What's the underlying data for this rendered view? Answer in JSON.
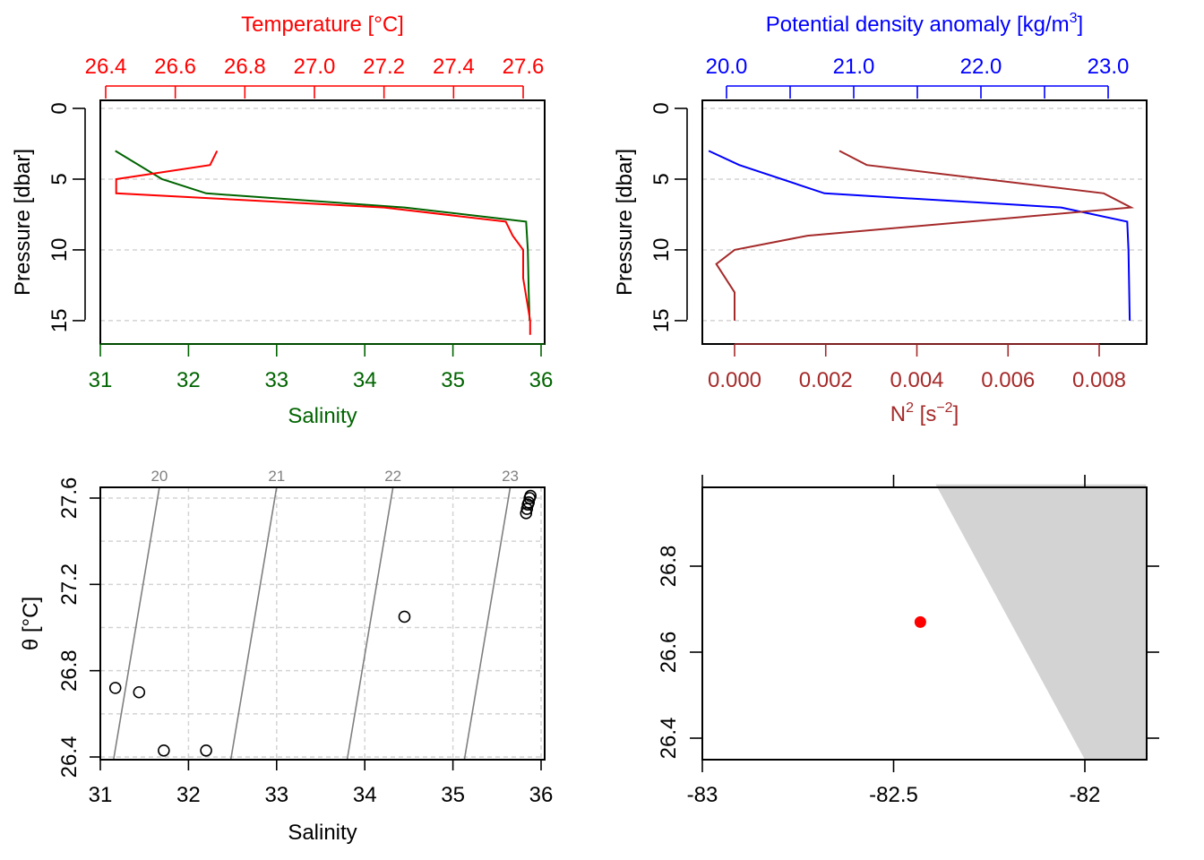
{
  "colors": {
    "temperature": "#ff0000",
    "salinity": "#006400",
    "density": "#0000ff",
    "n2": "#a52a2a",
    "grid": "#d3d3d3",
    "isopycnal": "#7f7f7f",
    "land": "#d3d3d3",
    "station": "#ff0000"
  },
  "chart_data": [
    {
      "panel": "temperature-salinity-profile",
      "type": "line",
      "top_axis_label": "Temperature [°C]",
      "bottom_axis_label": "Salinity",
      "left_axis_label": "Pressure [dbar]",
      "top_ticks": [
        "26.4",
        "26.6",
        "26.8",
        "27.0",
        "27.2",
        "27.4",
        "27.6"
      ],
      "bottom_ticks": [
        "31",
        "32",
        "33",
        "34",
        "35",
        "36"
      ],
      "left_ticks": [
        "0",
        "5",
        "10",
        "15"
      ],
      "xlim_salinity": [
        31,
        36
      ],
      "xlim_temperature": [
        26.4,
        27.6
      ],
      "ylim": [
        17,
        0
      ],
      "grid": true,
      "series": [
        {
          "name": "Temperature",
          "x": [
            26.72,
            26.7,
            26.43,
            26.43,
            27.2,
            27.55,
            27.57,
            27.6,
            27.6,
            27.62,
            27.62
          ],
          "y": [
            3,
            4,
            5,
            6,
            7,
            8,
            9,
            10,
            12,
            15,
            16
          ]
        },
        {
          "name": "Salinity",
          "x": [
            31.17,
            31.7,
            32.2,
            34.45,
            35.83,
            35.85,
            35.86,
            35.87
          ],
          "y": [
            3,
            5,
            6,
            7,
            8,
            10,
            13,
            15
          ]
        }
      ]
    },
    {
      "panel": "density-n2-profile",
      "type": "line",
      "top_axis_label": "Potential density anomaly [kg/m3]",
      "bottom_axis_label": "N2 [s-2]",
      "left_axis_label": "Pressure [dbar]",
      "top_ticks": [
        "20.0",
        "21.0",
        "22.0",
        "23.0"
      ],
      "bottom_ticks": [
        "0.000",
        "0.002",
        "0.004",
        "0.006",
        "0.008"
      ],
      "left_ticks": [
        "0",
        "5",
        "10",
        "15"
      ],
      "xlim_density": [
        19.98,
        23.28
      ],
      "xlim_n2": [
        -0.00057,
        0.00907
      ],
      "ylim": [
        17,
        0
      ],
      "grid": true,
      "series": [
        {
          "name": "Potential density anomaly",
          "x": [
            19.86,
            20.1,
            20.77,
            22.63,
            23.15,
            23.16,
            23.17
          ],
          "y": [
            3,
            4,
            6,
            7,
            8,
            10,
            15
          ]
        },
        {
          "name": "N2",
          "x": [
            0.0023,
            0.0029,
            0.0081,
            0.0087,
            0.0016,
            0.0,
            -0.0004,
            0.0,
            0.0
          ],
          "y": [
            3,
            4,
            6,
            7,
            9,
            10,
            11,
            13,
            15
          ]
        }
      ]
    },
    {
      "panel": "ts-diagram",
      "type": "scatter",
      "xlabel": "Salinity",
      "ylabel": "θ [°C]",
      "x_ticks": [
        "31",
        "32",
        "33",
        "34",
        "35",
        "36"
      ],
      "y_ticks": [
        "26.4",
        "26.8",
        "27.2",
        "27.6"
      ],
      "xlim": [
        31,
        36
      ],
      "ylim": [
        26.39,
        27.65
      ],
      "grid": true,
      "isopycnals": [
        {
          "label": "20",
          "s": [
            31.15,
            31.67
          ]
        },
        {
          "label": "21",
          "s": [
            32.48,
            33.0
          ]
        },
        {
          "label": "22",
          "s": [
            33.8,
            34.32
          ]
        },
        {
          "label": "23",
          "s": [
            35.13,
            35.65
          ]
        }
      ],
      "points": [
        [
          31.17,
          26.72
        ],
        [
          31.44,
          26.7
        ],
        [
          31.72,
          26.43
        ],
        [
          32.2,
          26.43
        ],
        [
          34.45,
          27.05
        ],
        [
          35.83,
          27.53
        ],
        [
          35.84,
          27.55
        ],
        [
          35.85,
          27.57
        ],
        [
          35.86,
          27.58
        ],
        [
          35.87,
          27.6
        ],
        [
          35.88,
          27.61
        ]
      ]
    },
    {
      "panel": "station-map",
      "type": "scatter",
      "x_ticks": [
        "-83",
        "-82.5",
        "-82"
      ],
      "y_ticks": [
        "26.4",
        "26.6",
        "26.8"
      ],
      "xlim": [
        -83.0,
        -81.84
      ],
      "ylim": [
        26.35,
        26.99
      ],
      "land_polygon": [
        [
          -82.39,
          26.99
        ],
        [
          -81.84,
          26.99
        ],
        [
          -81.84,
          26.35
        ],
        [
          -82.0,
          26.35
        ]
      ],
      "station": {
        "lon": -82.43,
        "lat": 26.67
      }
    }
  ]
}
